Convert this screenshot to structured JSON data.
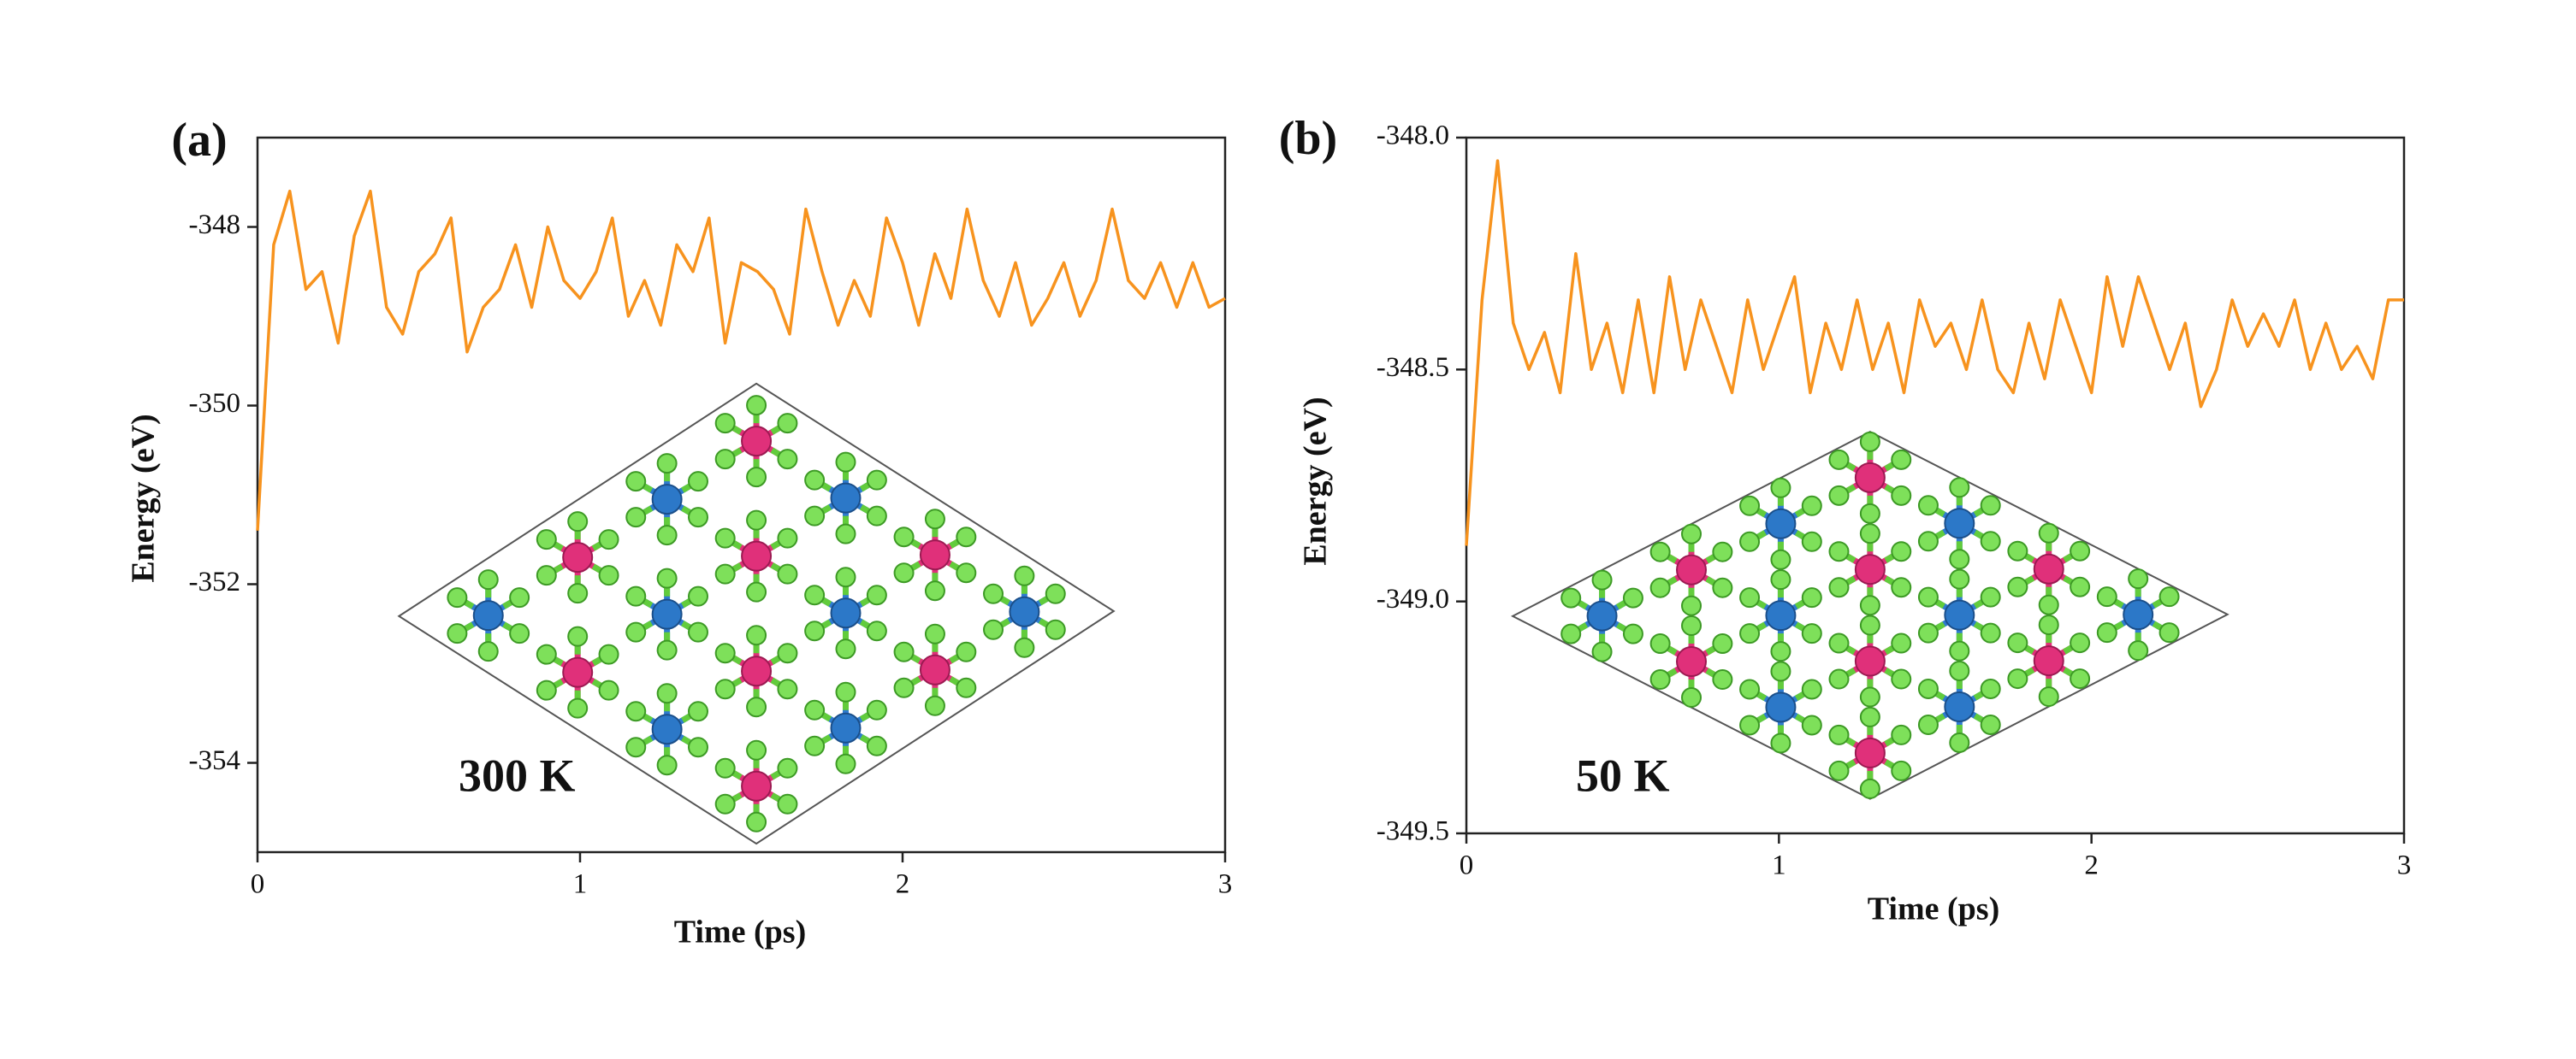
{
  "chart_data": [
    {
      "type": "line",
      "panel_label": "(a)",
      "annotation": "300 K",
      "y_label": "Energy (eV)",
      "x_label": "Time (ps)",
      "color": "#f7931e",
      "xlim": [
        0,
        3
      ],
      "xticks": [
        0,
        1,
        2,
        3
      ],
      "ylim": [
        -355,
        -347
      ],
      "yticks": [
        -348,
        -350,
        -352,
        -354
      ],
      "x": [
        0,
        0.05,
        0.1,
        0.15,
        0.2,
        0.25,
        0.3,
        0.35,
        0.4,
        0.45,
        0.5,
        0.55,
        0.6,
        0.65,
        0.7,
        0.75,
        0.8,
        0.85,
        0.9,
        0.95,
        1.0,
        1.05,
        1.1,
        1.15,
        1.2,
        1.25,
        1.3,
        1.35,
        1.4,
        1.45,
        1.5,
        1.55,
        1.6,
        1.65,
        1.7,
        1.75,
        1.8,
        1.85,
        1.9,
        1.95,
        2.0,
        2.05,
        2.1,
        2.15,
        2.2,
        2.25,
        2.3,
        2.35,
        2.4,
        2.45,
        2.5,
        2.55,
        2.6,
        2.65,
        2.7,
        2.75,
        2.8,
        2.85,
        2.9,
        2.95,
        3.0
      ],
      "values": [
        -351.4,
        -348.2,
        -347.6,
        -348.7,
        -348.5,
        -349.3,
        -348.1,
        -347.6,
        -348.9,
        -349.2,
        -348.5,
        -348.3,
        -347.9,
        -349.4,
        -348.9,
        -348.7,
        -348.2,
        -348.9,
        -348.0,
        -348.6,
        -348.8,
        -348.5,
        -347.9,
        -349.0,
        -348.6,
        -349.1,
        -348.2,
        -348.5,
        -347.9,
        -349.3,
        -348.4,
        -348.5,
        -348.7,
        -349.2,
        -347.8,
        -348.5,
        -349.1,
        -348.6,
        -349.0,
        -347.9,
        -348.4,
        -349.1,
        -348.3,
        -348.8,
        -347.8,
        -348.6,
        -349.0,
        -348.4,
        -349.1,
        -348.8,
        -348.4,
        -349.0,
        -348.6,
        -347.8,
        -348.6,
        -348.8,
        -348.4,
        -348.9,
        -348.4,
        -348.9,
        -348.8
      ]
    },
    {
      "type": "line",
      "panel_label": "(b)",
      "annotation": "50 K",
      "y_label": "Energy (eV)",
      "x_label": "Time (ps)",
      "color": "#f7931e",
      "xlim": [
        0,
        3
      ],
      "xticks": [
        0,
        1,
        2,
        3
      ],
      "ylim": [
        -349.5,
        -348.0
      ],
      "yticks": [
        {
          "value": -348,
          "label": "-348.0"
        },
        -348.5,
        {
          "value": -349,
          "label": "-349.0"
        },
        -349.5
      ],
      "x": [
        0,
        0.05,
        0.1,
        0.15,
        0.2,
        0.25,
        0.3,
        0.35,
        0.4,
        0.45,
        0.5,
        0.55,
        0.6,
        0.65,
        0.7,
        0.75,
        0.8,
        0.85,
        0.9,
        0.95,
        1.0,
        1.05,
        1.1,
        1.15,
        1.2,
        1.25,
        1.3,
        1.35,
        1.4,
        1.45,
        1.5,
        1.55,
        1.6,
        1.65,
        1.7,
        1.75,
        1.8,
        1.85,
        1.9,
        1.95,
        2.0,
        2.05,
        2.1,
        2.15,
        2.2,
        2.25,
        2.3,
        2.35,
        2.4,
        2.45,
        2.5,
        2.55,
        2.6,
        2.65,
        2.7,
        2.75,
        2.8,
        2.85,
        2.9,
        2.95,
        3.0
      ],
      "values": [
        -348.88,
        -348.35,
        -348.05,
        -348.4,
        -348.5,
        -348.42,
        -348.55,
        -348.25,
        -348.5,
        -348.4,
        -348.55,
        -348.35,
        -348.55,
        -348.3,
        -348.5,
        -348.35,
        -348.45,
        -348.55,
        -348.35,
        -348.5,
        -348.4,
        -348.3,
        -348.55,
        -348.4,
        -348.5,
        -348.35,
        -348.5,
        -348.4,
        -348.55,
        -348.35,
        -348.45,
        -348.4,
        -348.5,
        -348.35,
        -348.5,
        -348.55,
        -348.4,
        -348.52,
        -348.35,
        -348.45,
        -348.55,
        -348.3,
        -348.45,
        -348.3,
        -348.4,
        -348.5,
        -348.4,
        -348.58,
        -348.5,
        -348.35,
        -348.45,
        -348.38,
        -348.45,
        -348.35,
        -348.5,
        -348.4,
        -348.5,
        -348.45,
        -348.52,
        -348.35,
        -348.35
      ]
    }
  ]
}
